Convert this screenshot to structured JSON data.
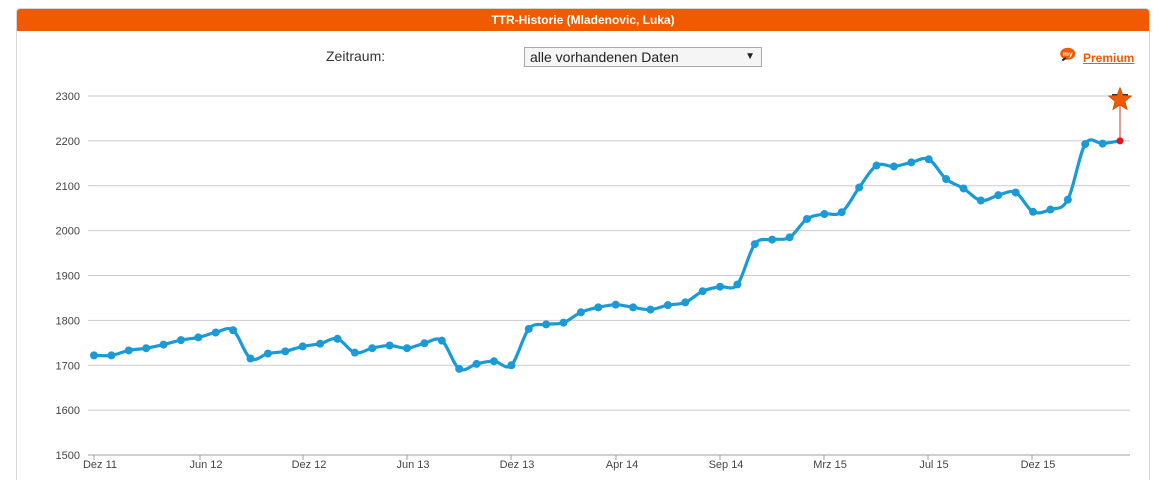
{
  "panel": {
    "title": "TTR-Historie (Mladenovic, Luka)"
  },
  "filter": {
    "label": "Zeitraum:",
    "selected": "alle vorhandenen Daten"
  },
  "premium": {
    "badge_text": "my",
    "link_text": "Premium"
  },
  "colors": {
    "header": "#f05a00",
    "line": "#1a9ad6",
    "current_point": "#e8141c",
    "forecast_marker": "#f05a00"
  },
  "chart_data": {
    "type": "line",
    "title": "",
    "xlabel": "",
    "ylabel": "",
    "ylim": [
      1500,
      2300
    ],
    "yticks": [
      1500,
      1600,
      1700,
      1800,
      1900,
      2000,
      2100,
      2200,
      2300
    ],
    "xtick_labels": [
      "Dez 11",
      "Jun 12",
      "Dez 12",
      "Jun 13",
      "Dez 13",
      "Apr 14",
      "Sep 14",
      "Mrz 15",
      "Jul 15",
      "Dez 15"
    ],
    "grid": true,
    "legend": "none",
    "series": [
      {
        "values": [
          1722,
          1722,
          1733,
          1738,
          1746,
          1756,
          1762,
          1773,
          1778,
          1715,
          1726,
          1731,
          1742,
          1748,
          1759,
          1728,
          1738,
          1744,
          1738,
          1749,
          1755,
          1692,
          1703,
          1709,
          1700,
          1781,
          1791,
          1795,
          1818,
          1829,
          1835,
          1829,
          1824,
          1834,
          1840,
          1865,
          1875,
          1880,
          1970,
          1980,
          1985,
          2026,
          2037,
          2041,
          2096,
          2145,
          2143,
          2152,
          2159,
          2115,
          2094,
          2067,
          2079,
          2085,
          2042,
          2047,
          2069,
          2193,
          2194,
          2200
        ]
      }
    ],
    "forecast": {
      "from": 2200,
      "to": 2285
    }
  }
}
